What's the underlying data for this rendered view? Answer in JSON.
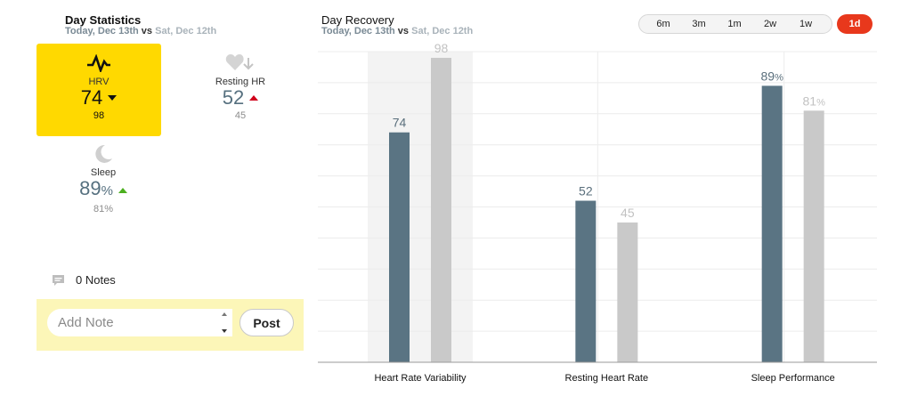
{
  "stats": {
    "title": "Day Statistics",
    "subtitle": {
      "current": "Today, Dec 13th",
      "vs": "vs",
      "previous": "Sat, Dec 12th"
    },
    "hrv": {
      "label": "HRV",
      "value": "74",
      "previous": "98",
      "trend": "down",
      "icon": "pulse-icon"
    },
    "resting_hr": {
      "label": "Resting HR",
      "value": "52",
      "previous": "45",
      "trend": "up",
      "icon": "heart-rate-icon"
    },
    "sleep": {
      "label": "Sleep",
      "value": "89",
      "unit": "%",
      "previous": "81%",
      "trend": "up",
      "icon": "moon-icon"
    }
  },
  "notes": {
    "count_label": "0 Notes",
    "placeholder": "Add Note",
    "post_label": "Post"
  },
  "recovery": {
    "title": "Day Recovery",
    "subtitle": {
      "current": "Today, Dec 13th",
      "vs": "vs",
      "previous": "Sat, Dec 12th"
    },
    "ranges": [
      "6m",
      "3m",
      "1m",
      "2w",
      "1w",
      "1d"
    ],
    "active_range": "1d"
  },
  "colors": {
    "current": "#5a7483",
    "previous": "#c9c9c9",
    "active_range": "#e8381c",
    "highlight_card": "#ffd900",
    "trend_up": "#4caf1f",
    "trend_up_alert": "#d0021b"
  },
  "chart_data": {
    "type": "bar",
    "categories": [
      "Heart Rate Variability",
      "Resting Heart Rate",
      "Sleep Performance"
    ],
    "series": [
      {
        "values": [
          74,
          52,
          89
        ],
        "labels": [
          "74",
          "52",
          "89"
        ],
        "units": [
          "",
          "",
          "%"
        ]
      },
      {
        "values": [
          98,
          45,
          81
        ],
        "labels": [
          "98",
          "45",
          "81"
        ],
        "units": [
          "",
          "",
          "%"
        ]
      }
    ],
    "ylim": [
      0,
      100
    ],
    "grid": true,
    "highlighted_category": "Heart Rate Variability"
  }
}
